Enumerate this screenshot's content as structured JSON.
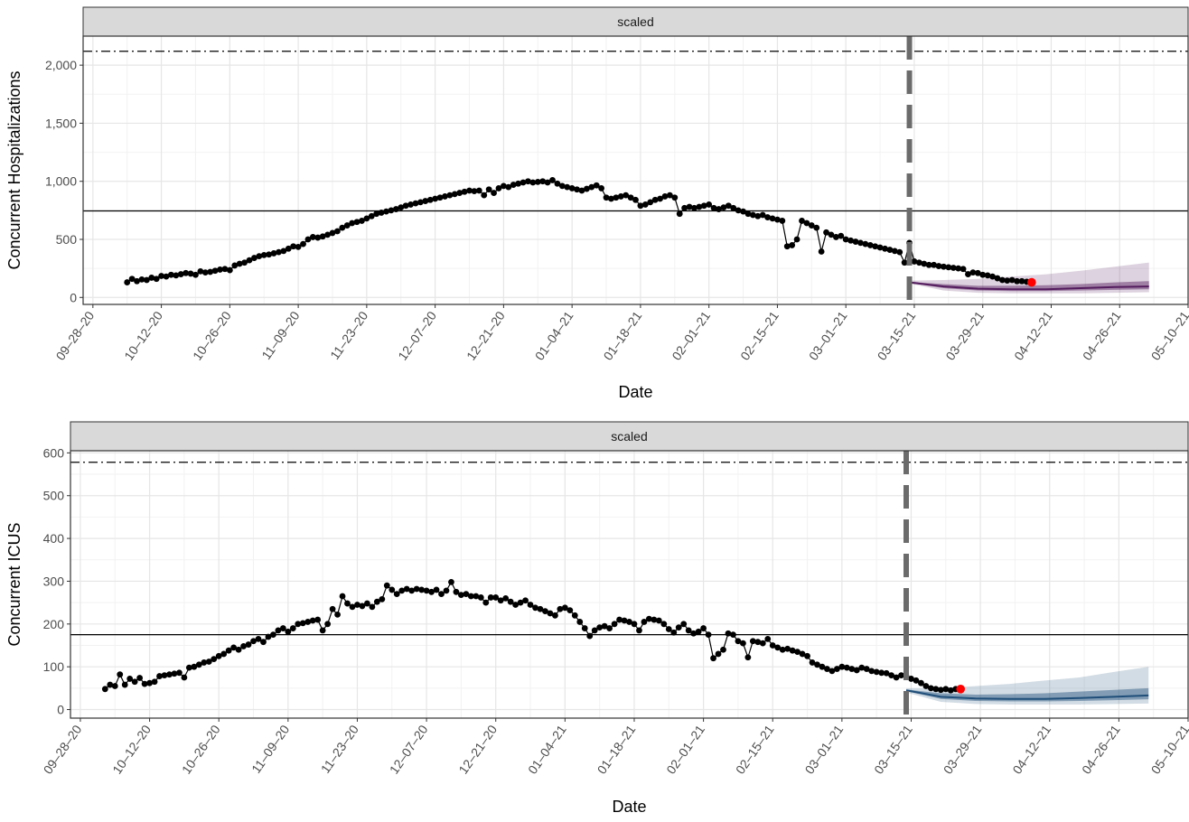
{
  "chart_data": [
    {
      "type": "line",
      "strip_label": "scaled",
      "xlabel": "Date",
      "ylabel": "Concurrent Hospitalizations",
      "ylim": [
        -60,
        2250
      ],
      "yticks": [
        0,
        500,
        1000,
        1500,
        2000
      ],
      "ytick_labels": [
        "0",
        "500",
        "1,000",
        "1,500",
        "2,000"
      ],
      "xtick_labels": [
        "09-28-20",
        "10-12-20",
        "10-26-20",
        "11-09-20",
        "11-23-20",
        "12-07-20",
        "12-21-20",
        "01-04-21",
        "01-18-21",
        "02-01-21",
        "02-15-21",
        "03-01-21",
        "03-15-21",
        "03-29-21",
        "04-12-21",
        "04-26-21",
        "05-10-21"
      ],
      "xlim": [
        "2020-09-26",
        "2021-05-10"
      ],
      "grid": true,
      "capacity_line": 2120,
      "reference_line": 745,
      "forecast_start": "2021-03-14",
      "forecast_color": "#541C5E",
      "observed": {
        "start": "2020-10-05",
        "end": "2021-03-14",
        "values": [
          130,
          160,
          140,
          155,
          150,
          170,
          160,
          185,
          180,
          195,
          190,
          200,
          210,
          205,
          195,
          225,
          215,
          220,
          230,
          240,
          245,
          235,
          275,
          290,
          300,
          320,
          340,
          355,
          365,
          370,
          380,
          390,
          400,
          420,
          440,
          435,
          460,
          500,
          520,
          515,
          525,
          540,
          555,
          570,
          600,
          620,
          640,
          650,
          660,
          680,
          700,
          720,
          730,
          740,
          750,
          760,
          775,
          790,
          800,
          810,
          820,
          830,
          840,
          850,
          860,
          870,
          880,
          890,
          900,
          910,
          920,
          915,
          920,
          880,
          930,
          900,
          940,
          960,
          950,
          970,
          980,
          990,
          1000,
          990,
          995,
          1000,
          990,
          1010,
          980,
          960,
          950,
          940,
          930,
          920,
          935,
          950,
          965,
          940,
          860,
          850,
          860,
          870,
          880,
          860,
          840,
          790,
          800,
          820,
          840,
          850,
          870,
          880,
          860,
          720,
          770,
          780,
          770,
          780,
          790,
          800,
          770,
          760,
          775,
          790,
          770,
          750,
          740,
          720,
          710,
          700,
          710,
          690,
          680,
          670,
          660,
          440,
          450,
          500,
          660,
          640,
          620,
          600,
          395,
          560,
          540,
          520,
          530,
          500,
          490,
          480,
          470,
          460,
          450,
          440,
          430,
          420,
          410,
          400,
          390,
          300,
          470,
          310,
          300,
          290,
          280,
          280,
          270,
          265,
          260,
          255,
          250,
          245,
          200,
          215,
          210,
          195,
          190,
          180,
          165,
          150,
          145,
          150,
          140,
          140,
          135,
          130
        ]
      },
      "forecast": {
        "dates": [
          "2021-03-14",
          "2021-03-21",
          "2021-03-28",
          "2021-04-04",
          "2021-04-11",
          "2021-04-18",
          "2021-04-25",
          "2021-05-02"
        ],
        "median": [
          130,
          95,
          75,
          70,
          70,
          80,
          90,
          95
        ],
        "q25": [
          125,
          80,
          60,
          55,
          55,
          60,
          65,
          70
        ],
        "q75": [
          135,
          115,
          100,
          100,
          105,
          115,
          130,
          140
        ],
        "q05": [
          120,
          60,
          40,
          35,
          35,
          35,
          40,
          45
        ],
        "q95": [
          145,
          150,
          160,
          180,
          200,
          230,
          265,
          300
        ]
      }
    },
    {
      "type": "line",
      "strip_label": "scaled",
      "xlabel": "Date",
      "ylabel": "Concurrent ICUS",
      "ylim": [
        -20,
        605
      ],
      "yticks": [
        0,
        100,
        200,
        300,
        400,
        500,
        600
      ],
      "ytick_labels": [
        "0",
        "100",
        "200",
        "300",
        "400",
        "500",
        "600"
      ],
      "xtick_labels": [
        "09-28-20",
        "10-12-20",
        "10-26-20",
        "11-09-20",
        "11-23-20",
        "12-07-20",
        "12-21-20",
        "01-04-21",
        "01-18-21",
        "02-01-21",
        "02-15-21",
        "03-01-21",
        "03-15-21",
        "03-29-21",
        "04-12-21",
        "04-26-21",
        "05-10-21"
      ],
      "xlim": [
        "2020-09-26",
        "2021-05-10"
      ],
      "grid": true,
      "capacity_line": 578,
      "reference_line": 175,
      "forecast_start": "2021-03-14",
      "forecast_color": "#1F4E79",
      "observed": {
        "start": "2020-10-03",
        "end": "2021-03-14",
        "values": [
          48,
          58,
          55,
          82,
          58,
          72,
          65,
          74,
          60,
          62,
          65,
          78,
          80,
          82,
          84,
          86,
          75,
          98,
          100,
          105,
          110,
          112,
          118,
          125,
          130,
          138,
          145,
          140,
          148,
          152,
          160,
          165,
          158,
          170,
          175,
          185,
          190,
          182,
          190,
          200,
          202,
          205,
          208,
          210,
          185,
          200,
          235,
          222,
          265,
          248,
          240,
          245,
          242,
          248,
          240,
          252,
          258,
          290,
          280,
          270,
          278,
          282,
          278,
          282,
          280,
          278,
          275,
          280,
          270,
          278,
          298,
          275,
          268,
          270,
          265,
          265,
          262,
          250,
          262,
          262,
          255,
          260,
          252,
          245,
          250,
          255,
          245,
          238,
          235,
          230,
          225,
          220,
          235,
          238,
          232,
          220,
          205,
          190,
          172,
          185,
          192,
          195,
          190,
          200,
          210,
          208,
          205,
          200,
          185,
          205,
          212,
          210,
          208,
          200,
          188,
          180,
          192,
          200,
          185,
          178,
          182,
          190,
          175,
          120,
          130,
          140,
          178,
          175,
          160,
          155,
          122,
          160,
          158,
          155,
          165,
          150,
          145,
          140,
          142,
          138,
          135,
          130,
          125,
          110,
          105,
          100,
          95,
          90,
          95,
          100,
          98,
          95,
          92,
          98,
          95,
          90,
          88,
          86,
          85,
          80,
          75,
          80,
          78,
          72,
          68,
          62,
          55,
          50,
          48,
          46,
          48,
          45,
          48,
          48
        ]
      },
      "forecast": {
        "dates": [
          "2021-03-14",
          "2021-03-21",
          "2021-03-28",
          "2021-04-04",
          "2021-04-11",
          "2021-04-18",
          "2021-04-25",
          "2021-05-02"
        ],
        "median": [
          45,
          30,
          26,
          25,
          25,
          27,
          30,
          33
        ],
        "q25": [
          43,
          25,
          20,
          19,
          19,
          20,
          22,
          24
        ],
        "q75": [
          47,
          38,
          35,
          36,
          38,
          42,
          46,
          50
        ],
        "q05": [
          40,
          18,
          13,
          12,
          12,
          12,
          13,
          14
        ],
        "q95": [
          50,
          50,
          55,
          60,
          68,
          75,
          88,
          100
        ]
      }
    }
  ]
}
